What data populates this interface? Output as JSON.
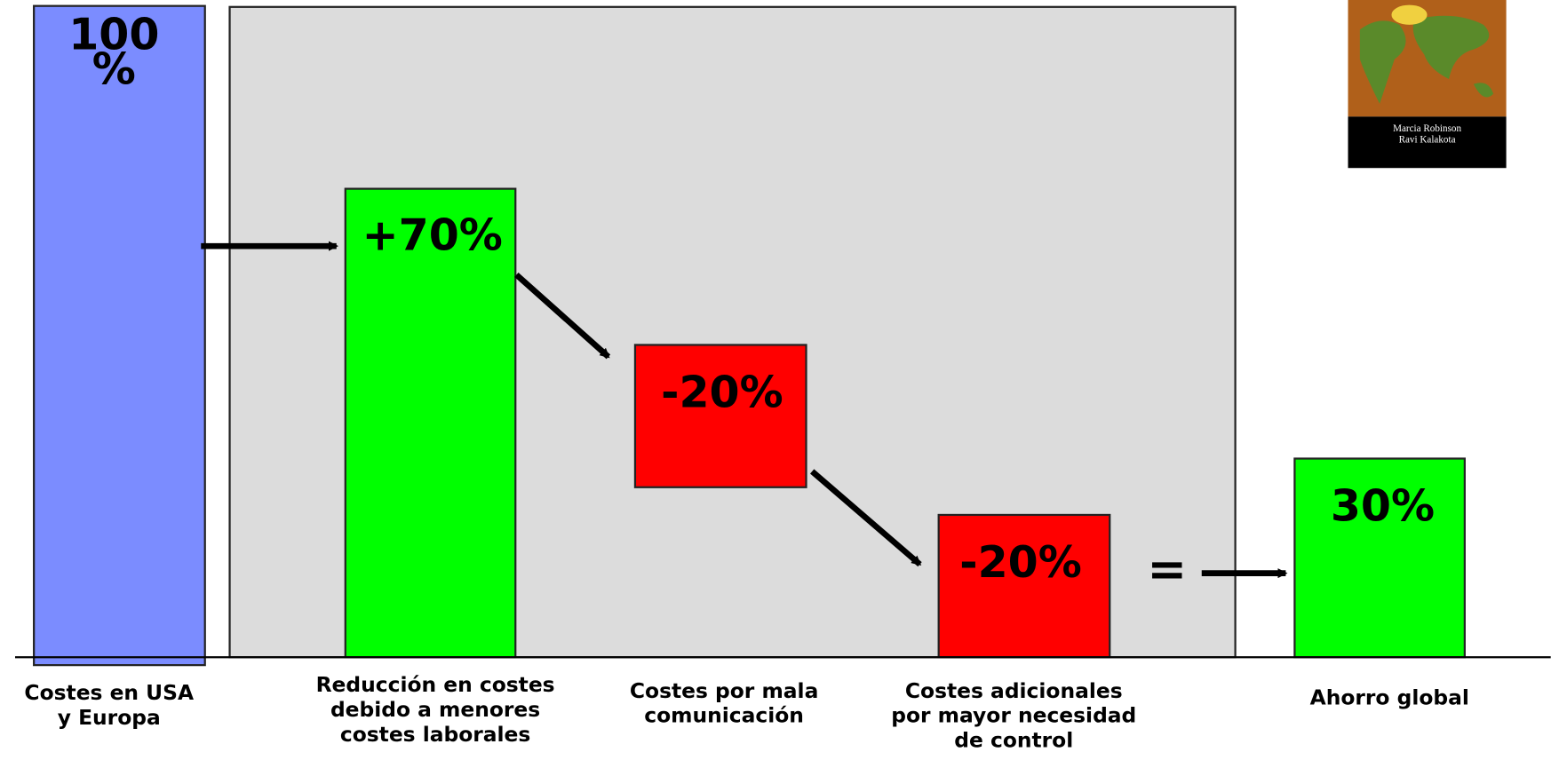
{
  "bars": [
    {
      "label": [
        "100",
        "%"
      ],
      "caption": [
        "Costes en USA",
        "y Europa"
      ]
    },
    {
      "label": [
        "+70%"
      ],
      "caption": [
        "Reducción en costes",
        "debido a menores",
        "costes laborales"
      ]
    },
    {
      "label": [
        "-20%"
      ],
      "caption": [
        "Costes por mala",
        "comunicación"
      ]
    },
    {
      "label": [
        "-20%"
      ],
      "caption": [
        "Costes adicionales",
        "por mayor necesidad",
        "de control"
      ]
    },
    {
      "label": [
        "30%"
      ],
      "caption": [
        "Ahorro global"
      ]
    }
  ],
  "equals": "=",
  "book": {
    "authors": [
      "Marcia Robinson",
      "Ravi Kalakota"
    ]
  }
}
